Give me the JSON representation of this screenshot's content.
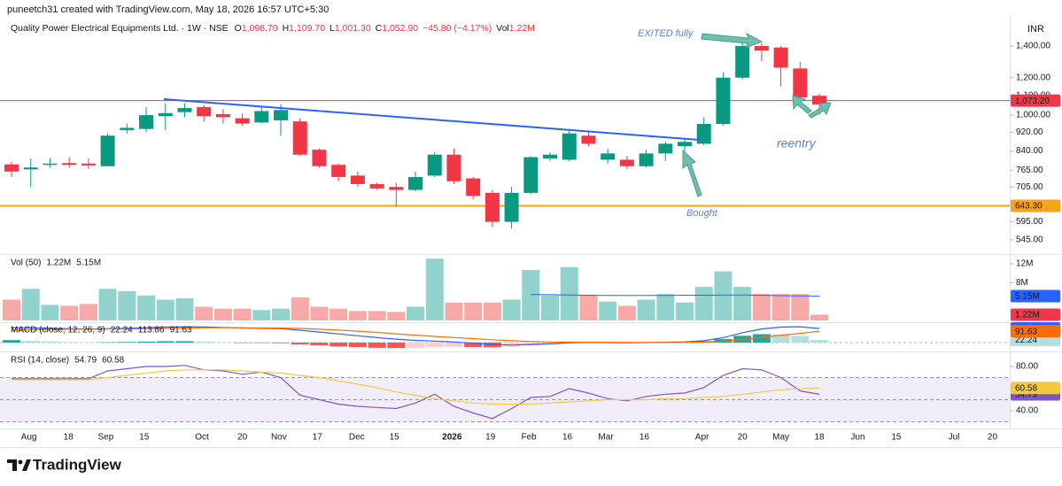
{
  "header": {
    "credit": "puneetch31 created with TradingView.com, May 18, 2026 16:57 UTC+5:30",
    "symbol": "Quality Power Electrical Equipments Ltd. · 1W · NSE",
    "ohlc": [
      {
        "key": "O",
        "value": "1,098.70"
      },
      {
        "key": "H",
        "value": "1,109.70"
      },
      {
        "key": "L",
        "value": "1,001.30"
      },
      {
        "key": "C",
        "value": "1,052.90"
      }
    ],
    "change": "−45.80 (−4.17%)",
    "volume": {
      "key": "Vol",
      "value": "1.22M"
    },
    "currency": "INR"
  },
  "annotations": {
    "exit": "EXITED fully",
    "reentry": "reentry",
    "bought": "Bought"
  },
  "footer": {
    "brand": "TradingView"
  },
  "chart_data": [
    {
      "type": "candlestick",
      "x": [
        0,
        1,
        2,
        3,
        4,
        5,
        6,
        7,
        8,
        9,
        10,
        11,
        12,
        13,
        14,
        15,
        16,
        17,
        18,
        19,
        20,
        21,
        22,
        23,
        24,
        25,
        26,
        27,
        28,
        29,
        30,
        31,
        32,
        33,
        34,
        35,
        36,
        37,
        38,
        39,
        40,
        41,
        42
      ],
      "open": [
        787,
        768,
        785,
        792,
        790,
        780,
        930,
        935,
        995,
        1015,
        1040,
        1005,
        985,
        965,
        975,
        970,
        845,
        785,
        745,
        715,
        705,
        695,
        745,
        825,
        735,
        685,
        595,
        685,
        810,
        805,
        905,
        805,
        805,
        780,
        830,
        860,
        870,
        958,
        1200,
        1400,
        1390,
        1255,
        1098.7
      ],
      "high": [
        797,
        810,
        812,
        815,
        810,
        915,
        960,
        1040,
        1060,
        1060,
        1050,
        1030,
        1010,
        1045,
        1055,
        985,
        850,
        790,
        760,
        720,
        720,
        760,
        835,
        850,
        740,
        695,
        705,
        820,
        835,
        935,
        920,
        850,
        820,
        845,
        880,
        890,
        990,
        1230,
        1430,
        1420,
        1400,
        1295,
        1109.7
      ],
      "low": [
        740,
        705,
        775,
        775,
        770,
        780,
        915,
        920,
        930,
        990,
        970,
        960,
        950,
        960,
        905,
        820,
        775,
        725,
        705,
        695,
        640,
        690,
        740,
        715,
        665,
        580,
        575,
        680,
        800,
        800,
        860,
        790,
        770,
        775,
        800,
        830,
        865,
        950,
        1190,
        1300,
        1150,
        1085,
        1001.3
      ],
      "close": [
        760,
        775,
        790,
        785,
        783,
        905,
        940,
        1000,
        1010,
        1035,
        995,
        990,
        960,
        1020,
        1025,
        825,
        780,
        740,
        715,
        700,
        695,
        740,
        825,
        725,
        675,
        595,
        685,
        815,
        825,
        915,
        870,
        830,
        780,
        830,
        870,
        878,
        958,
        1200,
        1400,
        1370,
        1260,
        1090,
        1052.9
      ],
      "up_color": "#089981",
      "down_color": "#f23645",
      "log": true,
      "ylim": [
        513,
        1593
      ],
      "yticks": [
        {
          "value": 545,
          "label": "545.00"
        },
        {
          "value": 595,
          "label": "595.00"
        },
        {
          "value": 705,
          "label": "705.00"
        },
        {
          "value": 765,
          "label": "765.00"
        },
        {
          "value": 840,
          "label": "840.00"
        },
        {
          "value": 920,
          "label": "920.00"
        },
        {
          "value": 1000,
          "label": "1,000.00"
        },
        {
          "value": 1100,
          "label": "1,100.00"
        },
        {
          "value": 1200,
          "label": "1,200.00"
        },
        {
          "value": 1400,
          "label": "1,400.00"
        }
      ],
      "xlim": [
        -0.6,
        51.9
      ],
      "xticks": [
        {
          "value": 0.9,
          "label": "Aug"
        },
        {
          "value": 2.95,
          "label": "18"
        },
        {
          "value": 4.9,
          "label": "Sep"
        },
        {
          "value": 6.9,
          "label": "15"
        },
        {
          "value": 9.9,
          "label": "Oct"
        },
        {
          "value": 12,
          "label": "20"
        },
        {
          "value": 13.9,
          "label": "Nov"
        },
        {
          "value": 15.9,
          "label": "17"
        },
        {
          "value": 17.95,
          "label": "Dec"
        },
        {
          "value": 19.9,
          "label": "15"
        },
        {
          "value": 22.9,
          "label": "2026"
        },
        {
          "value": 24.9,
          "label": "19"
        },
        {
          "value": 26.9,
          "label": "Feb"
        },
        {
          "value": 28.9,
          "label": "16"
        },
        {
          "value": 30.9,
          "label": "Mar"
        },
        {
          "value": 32.9,
          "label": "16"
        },
        {
          "value": 35.9,
          "label": "Apr"
        },
        {
          "value": 38,
          "label": "20"
        },
        {
          "value": 40,
          "label": "May"
        },
        {
          "value": 42,
          "label": "18"
        },
        {
          "value": 44,
          "label": "Jun"
        },
        {
          "value": 46,
          "label": "15"
        },
        {
          "value": 49,
          "label": "Jul"
        },
        {
          "value": 51,
          "label": "20"
        }
      ],
      "price_lines": [
        {
          "value": 1073.2,
          "label": "1,073.20",
          "color": "#f23645"
        },
        {
          "value": 643.3,
          "label": "643.30",
          "color": "#f7a21b"
        }
      ]
    },
    {
      "type": "bar",
      "title": "Vol (50)",
      "legend_values": [
        "1.22M",
        "5.15M"
      ],
      "values": [
        4.4,
        6.7,
        3.3,
        3.1,
        3.5,
        6.7,
        6.2,
        5.3,
        4.4,
        4.7,
        2.9,
        2.5,
        2.5,
        2.2,
        2.5,
        4.9,
        2.9,
        2.5,
        2.0,
        2.0,
        1.8,
        2.9,
        13.1,
        3.8,
        3.8,
        3.8,
        4.4,
        10.7,
        5.3,
        11.3,
        5.3,
        4.0,
        3.1,
        4.4,
        5.6,
        3.8,
        7.1,
        10.4,
        7.1,
        5.6,
        5.6,
        5.6,
        1.22
      ],
      "up_color": "#92d2cc",
      "down_color": "#f7a9a7",
      "ma": {
        "color": "#2962ff",
        "values": [
          null,
          null,
          null,
          null,
          null,
          null,
          null,
          null,
          null,
          null,
          null,
          null,
          null,
          null,
          null,
          null,
          null,
          null,
          null,
          null,
          null,
          null,
          null,
          null,
          null,
          null,
          null,
          5.5,
          5.45,
          5.4,
          5.35,
          5.3,
          5.3,
          5.3,
          5.3,
          5.35,
          5.35,
          5.4,
          5.4,
          5.35,
          5.25,
          5.2,
          5.15
        ]
      },
      "ylim": [
        0,
        13.5
      ],
      "yticks": [
        {
          "value": 12,
          "label": "12M"
        },
        {
          "value": 8,
          "label": "8M"
        }
      ]
    },
    {
      "type": "line",
      "title": "MACD (close, 12, 26, 9)",
      "legend_values": [
        "22.24",
        "113.86",
        "91.63"
      ],
      "histogram": {
        "values": [
          20,
          14,
          9,
          4,
          2,
          3,
          5,
          8,
          11,
          11,
          7,
          2,
          -1,
          -3,
          -5,
          -14,
          -23,
          -31,
          -37,
          -42,
          -43,
          -42,
          -38,
          -36,
          -37,
          -38,
          -35,
          -24,
          -15,
          -5,
          -1,
          -2,
          -3,
          -1,
          2,
          4,
          11,
          29,
          55,
          68,
          66,
          54,
          22.24
        ],
        "colors": [
          "#26a69a",
          "#b2dfdb",
          "#ffcdd2",
          "#ff5252"
        ]
      },
      "series": [
        {
          "color": "#2962ff",
          "values": [
            120,
            118,
            115,
            112,
            110,
            112,
            115,
            120,
            125,
            128,
            126,
            122,
            118,
            115,
            112,
            100,
            85,
            70,
            55,
            40,
            28,
            18,
            12,
            5,
            -5,
            -15,
            -20,
            -15,
            -10,
            -2,
            2,
            0,
            -2,
            0,
            3,
            6,
            15,
            40,
            80,
            110,
            125,
            128,
            113.86
          ]
        },
        {
          "color": "#ff6d00",
          "values": [
            100,
            104,
            106,
            108,
            108,
            109,
            110,
            112,
            114,
            117,
            119,
            120,
            119,
            118,
            117,
            114,
            108,
            101,
            92,
            82,
            71,
            60,
            50,
            41,
            32,
            23,
            15,
            9,
            5,
            3,
            3,
            2,
            1,
            1,
            1,
            2,
            4,
            11,
            25,
            42,
            59,
            74,
            91.63
          ]
        }
      ],
      "ylim": [
        -50,
        150
      ]
    },
    {
      "type": "line",
      "title": "RSI (14, close)",
      "legend_values": [
        "54.79",
        "60.58"
      ],
      "series": [
        {
          "color": "#7e57c2",
          "values": [
            69,
            69,
            69,
            69,
            69,
            76,
            78,
            80,
            80,
            81,
            77,
            76,
            73,
            75,
            70,
            54,
            50,
            46,
            44,
            43,
            42,
            47,
            55,
            44,
            38,
            33,
            42,
            52,
            53,
            60,
            56,
            51,
            49,
            53,
            55,
            56,
            61,
            72,
            78,
            77,
            70,
            58,
            54.79
          ]
        },
        {
          "color": "#f5c842",
          "values": [
            68,
            68,
            68,
            68,
            68,
            70,
            72,
            74,
            76,
            77,
            77,
            77,
            76,
            75,
            74,
            72,
            70,
            67,
            64,
            61,
            57,
            54,
            51,
            49,
            47,
            46,
            46,
            46,
            47,
            48,
            49,
            50,
            50,
            50,
            51,
            51,
            52,
            53,
            55,
            57,
            59,
            60,
            60.58
          ]
        }
      ],
      "band": [
        30,
        70
      ],
      "middle": 50,
      "band_color": "#7e57c2",
      "ylim": [
        25.6,
        91.2
      ],
      "yticks": [
        {
          "value": 80,
          "label": "80.00"
        },
        {
          "value": 40,
          "label": "40.00"
        }
      ]
    }
  ]
}
